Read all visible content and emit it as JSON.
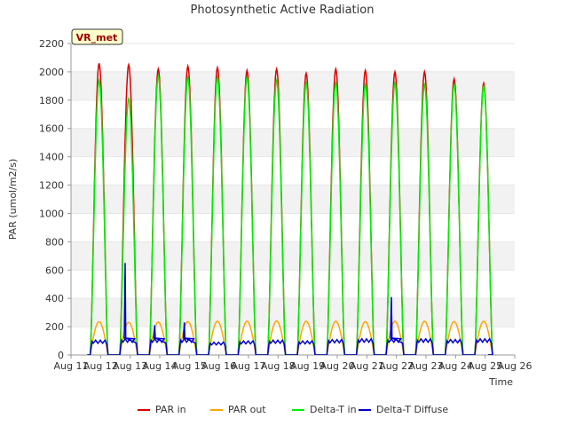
{
  "chart_data": {
    "type": "line",
    "title": "Photosynthetic Active Radiation",
    "xlabel": "Time",
    "ylabel": "PAR (umol/m2/s)",
    "site_label": "VR_met",
    "ylim": [
      0,
      2200
    ],
    "yticks": [
      0,
      200,
      400,
      600,
      800,
      1000,
      1200,
      1400,
      1600,
      1800,
      2000,
      2200
    ],
    "xlim": [
      11,
      26
    ],
    "xticks": [
      {
        "value": 11,
        "label": "Aug 11"
      },
      {
        "value": 12,
        "label": "Aug 12"
      },
      {
        "value": 13,
        "label": "Aug 13"
      },
      {
        "value": 14,
        "label": "Aug 14"
      },
      {
        "value": 15,
        "label": "Aug 15"
      },
      {
        "value": 16,
        "label": "Aug 16"
      },
      {
        "value": 17,
        "label": "Aug 17"
      },
      {
        "value": 18,
        "label": "Aug 18"
      },
      {
        "value": 19,
        "label": "Aug 19"
      },
      {
        "value": 20,
        "label": "Aug 20"
      },
      {
        "value": 21,
        "label": "Aug 21"
      },
      {
        "value": 22,
        "label": "Aug 22"
      },
      {
        "value": 23,
        "label": "Aug 23"
      },
      {
        "value": 24,
        "label": "Aug 24"
      },
      {
        "value": 25,
        "label": "Aug 25"
      },
      {
        "value": 26,
        "label": "Aug 26"
      }
    ],
    "grid": "horizontal alternating bands",
    "legend_position": "bottom-center",
    "series": [
      {
        "name": "PAR in",
        "color": "#dd0000",
        "daily_peaks": [
          2060,
          2050,
          2020,
          2040,
          2030,
          2010,
          2020,
          1990,
          2020,
          2010,
          2000,
          2000,
          1950,
          1920
        ]
      },
      {
        "name": "PAR out",
        "color": "#ffa500",
        "daily_peaks": [
          235,
          230,
          232,
          236,
          238,
          238,
          240,
          238,
          238,
          236,
          238,
          238,
          236,
          238
        ]
      },
      {
        "name": "Delta-T in",
        "color": "#00ee00",
        "daily_peaks": [
          1940,
          1810,
          1970,
          1960,
          1960,
          1960,
          1940,
          1920,
          1920,
          1910,
          1920,
          1910,
          1910,
          1900
        ]
      },
      {
        "name": "Delta-T Diffuse",
        "color": "#0000cc",
        "daily_peaks": [
          110,
          650,
          210,
          230,
          95,
          105,
          110,
          105,
          115,
          130,
          410,
          120,
          115,
          150
        ]
      }
    ],
    "day_centers": [
      11.95,
      12.95,
      13.95,
      14.95,
      15.95,
      16.95,
      17.95,
      18.95,
      19.95,
      20.95,
      21.95,
      22.95,
      23.95,
      24.95
    ],
    "day_half_width": 0.3
  }
}
